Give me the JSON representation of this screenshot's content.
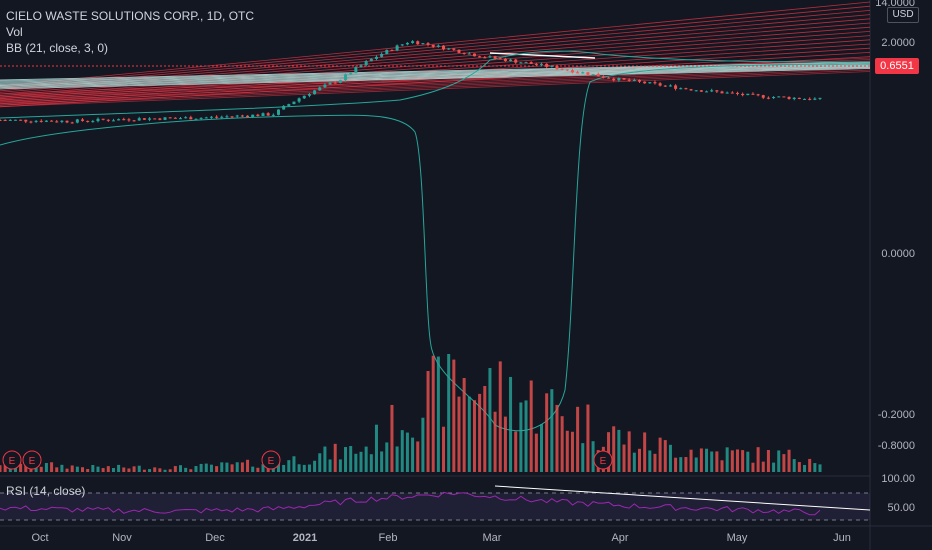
{
  "header": {
    "symbol_line": "CIELO WASTE SOLUTIONS CORP., 1D, OTC",
    "vol_label": "Vol",
    "bb_label": "BB (21, close, 3, 0)",
    "currency": "USD"
  },
  "rsi": {
    "label": "RSI (14, close)",
    "levels": [
      "100.00",
      "50.00"
    ]
  },
  "last_price": "0.6551",
  "colors": {
    "background": "#131722",
    "up": "#26a69a",
    "down": "#ef5350",
    "bb_band": "#26a69a",
    "rsi_line": "#9c27b0",
    "fan_red": "#f23645",
    "fan_white": "#ffffff"
  },
  "chart_data": {
    "type": "candlestick",
    "symbol": "CIELO WASTE SOLUTIONS CORP.",
    "interval": "1D",
    "exchange": "OTC",
    "price_axis_labels": [
      "14.0000",
      "2.0000",
      "0.0000",
      "-0.2000",
      "-0.8000"
    ],
    "rsi_axis_labels": [
      "100.00",
      "50.00"
    ],
    "time_axis_labels": [
      "Oct",
      "Nov",
      "Dec",
      "2021",
      "Feb",
      "Mar",
      "Apr",
      "May",
      "Jun"
    ],
    "events": [
      "E",
      "E",
      "E",
      "E"
    ],
    "approx_series": {
      "price_trend": [
        0.45,
        0.44,
        0.46,
        0.47,
        0.5,
        0.95,
        1.9,
        1.45,
        1.2,
        0.95,
        0.8,
        0.7,
        0.6551
      ],
      "volume_trend_relative": [
        0.1,
        0.05,
        0.05,
        0.1,
        0.25,
        1.0,
        0.7,
        0.3,
        0.2,
        0.15
      ],
      "rsi_trend": [
        55,
        50,
        48,
        52,
        72,
        85,
        68,
        58,
        52,
        45
      ]
    }
  }
}
